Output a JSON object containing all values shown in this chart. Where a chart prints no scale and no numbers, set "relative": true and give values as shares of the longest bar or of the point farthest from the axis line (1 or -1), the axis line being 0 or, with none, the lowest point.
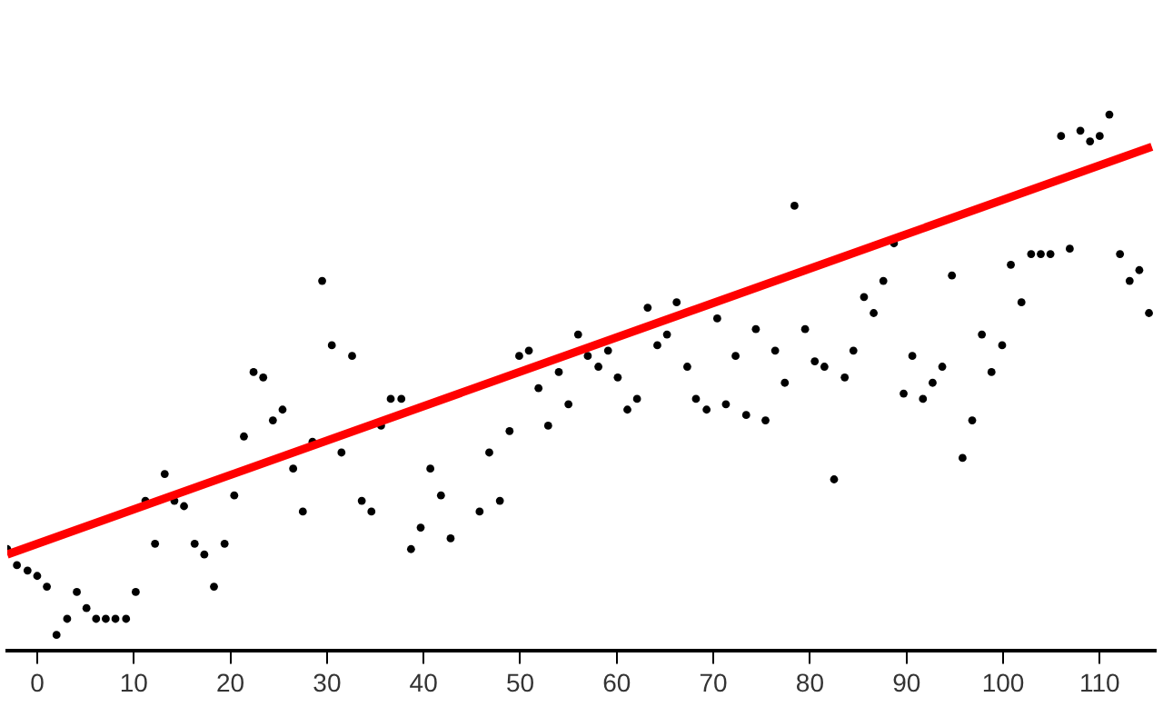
{
  "chart_data": {
    "type": "scatter",
    "relative": true,
    "xlim": [
      -3.1,
      115.8
    ],
    "xticks": [
      0,
      10,
      20,
      30,
      40,
      50,
      60,
      70,
      80,
      90,
      100,
      110
    ],
    "grid": false,
    "legend": false,
    "series": [
      {
        "type": "scatter",
        "marker": "circle",
        "color": "#000000",
        "x": [
          -3.1,
          -2.1,
          -1.0,
          0.0,
          1.0,
          2.0,
          3.1,
          4.1,
          5.1,
          6.1,
          7.1,
          8.1,
          9.2,
          10.2,
          11.2,
          12.2,
          13.2,
          14.2,
          15.2,
          16.3,
          17.3,
          18.3,
          19.4,
          20.4,
          21.4,
          22.4,
          23.4,
          24.4,
          25.4,
          26.5,
          27.5,
          28.5,
          29.5,
          30.5,
          31.5,
          32.6,
          33.6,
          34.6,
          35.6,
          36.6,
          37.7,
          38.7,
          39.7,
          40.7,
          41.8,
          42.8,
          45.8,
          46.8,
          47.9,
          48.9,
          49.9,
          50.9,
          51.9,
          52.9,
          54.0,
          55.0,
          56.0,
          57.0,
          58.1,
          59.1,
          60.1,
          61.1,
          62.1,
          63.2,
          64.2,
          65.2,
          66.2,
          67.3,
          68.2,
          69.3,
          70.4,
          71.3,
          72.3,
          73.4,
          74.4,
          75.4,
          76.4,
          77.4,
          78.4,
          79.5,
          80.5,
          81.5,
          82.5,
          83.6,
          84.5,
          85.6,
          86.6,
          87.6,
          88.7,
          89.7,
          90.6,
          91.7,
          92.7,
          93.7,
          94.7,
          95.8,
          96.8,
          97.8,
          98.8,
          99.9,
          100.8,
          101.9,
          102.9,
          103.9,
          104.9,
          106.0,
          106.9,
          108.0,
          109.0,
          110.0,
          111.0,
          112.1,
          113.1,
          114.1,
          115.1
        ],
        "values": [
          0.19,
          0.16,
          0.15,
          0.14,
          0.12,
          0.03,
          0.06,
          0.11,
          0.08,
          0.06,
          0.06,
          0.06,
          0.06,
          0.11,
          0.28,
          0.2,
          0.33,
          0.28,
          0.27,
          0.2,
          0.18,
          0.12,
          0.2,
          0.29,
          0.4,
          0.52,
          0.51,
          0.43,
          0.45,
          0.34,
          0.26,
          0.39,
          0.69,
          0.57,
          0.37,
          0.55,
          0.28,
          0.26,
          0.42,
          0.47,
          0.47,
          0.19,
          0.23,
          0.34,
          0.29,
          0.21,
          0.26,
          0.37,
          0.28,
          0.41,
          0.55,
          0.56,
          0.49,
          0.42,
          0.52,
          0.46,
          0.59,
          0.55,
          0.53,
          0.56,
          0.51,
          0.45,
          0.47,
          0.64,
          0.57,
          0.59,
          0.65,
          0.53,
          0.47,
          0.45,
          0.62,
          0.46,
          0.55,
          0.44,
          0.6,
          0.43,
          0.56,
          0.5,
          0.83,
          0.6,
          0.54,
          0.53,
          0.32,
          0.51,
          0.56,
          0.66,
          0.63,
          0.69,
          0.76,
          0.48,
          0.55,
          0.47,
          0.5,
          0.53,
          0.7,
          0.36,
          0.43,
          0.59,
          0.52,
          0.57,
          0.72,
          0.65,
          0.74,
          0.74,
          0.74,
          0.96,
          0.75,
          0.97,
          0.95,
          0.96,
          1.0,
          0.74,
          0.69,
          0.71,
          0.63
        ]
      },
      {
        "type": "line",
        "marker": "none",
        "color": "#ff0000",
        "x": [
          -3.1,
          115.4
        ],
        "values": [
          0.18,
          0.94
        ]
      }
    ]
  }
}
